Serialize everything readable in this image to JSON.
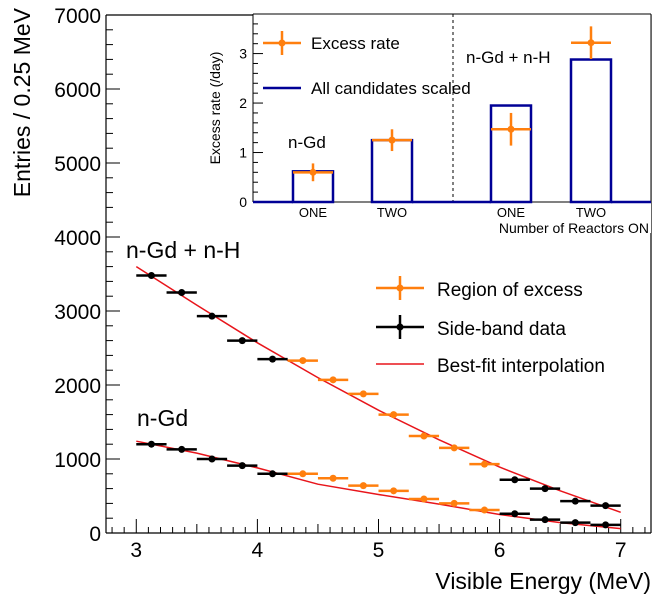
{
  "chart_data": [
    {
      "type": "scatter",
      "title": "",
      "xlabel": "Visible Energy (MeV)",
      "ylabel": "Entries / 0.25 MeV",
      "xlim": [
        2.75,
        7.25
      ],
      "ylim": [
        0,
        7000
      ],
      "x_ticks": [
        "3",
        "4",
        "5",
        "6",
        "7"
      ],
      "y_ticks": [
        "0",
        "1000",
        "2000",
        "3000",
        "4000",
        "5000",
        "6000",
        "7000"
      ],
      "grid": false,
      "legend": "right-middle",
      "legend_entries": [
        "Region of excess",
        "Side-band data",
        "Best-fit interpolation"
      ],
      "annotations": [
        "n-Gd + n-H",
        "n-Gd"
      ],
      "colors": {
        "excess": "#ff7f0e",
        "sideband": "#000000",
        "fit": "#e8151b"
      },
      "series": [
        {
          "name": "Region of excess",
          "x": [
            4.375,
            4.625,
            4.875,
            5.125,
            5.375,
            5.625,
            5.875
          ],
          "groups": [
            {
              "name": "n-Gd + n-H",
              "y": [
                2330,
                2070,
                1880,
                1600,
                1310,
                1150,
                930
              ]
            },
            {
              "name": "n-Gd",
              "y": [
                800,
                740,
                640,
                570,
                460,
                400,
                310
              ]
            }
          ]
        },
        {
          "name": "Side-band data",
          "groups": [
            {
              "name": "n-Gd + n-H",
              "x": [
                3.125,
                3.375,
                3.625,
                3.875,
                4.125,
                6.125,
                6.375,
                6.625,
                6.875
              ],
              "y": [
                3480,
                3250,
                2930,
                2600,
                2350,
                720,
                600,
                430,
                370
              ]
            },
            {
              "name": "n-Gd",
              "x": [
                3.125,
                3.375,
                3.625,
                3.875,
                4.125,
                6.125,
                6.375,
                6.625,
                6.875
              ],
              "y": [
                1200,
                1130,
                1000,
                910,
                800,
                260,
                180,
                140,
                110
              ]
            }
          ]
        },
        {
          "name": "Best-fit interpolation",
          "groups": [
            {
              "name": "n-Gd + n-H",
              "x": [
                3.0,
                3.5,
                4.0,
                4.5,
                5.0,
                5.5,
                6.0,
                6.5,
                7.0
              ],
              "y": [
                3600,
                3080,
                2570,
                2100,
                1660,
                1260,
                890,
                570,
                280
              ]
            },
            {
              "name": "n-Gd",
              "x": [
                3.0,
                3.5,
                4.0,
                4.5,
                5.0,
                5.5,
                6.0,
                6.5,
                7.0
              ],
              "y": [
                1240,
                1080,
                880,
                660,
                520,
                390,
                250,
                140,
                60
              ]
            }
          ]
        }
      ]
    },
    {
      "type": "bar",
      "title": "",
      "xlabel": "Number of Reactors ON",
      "ylabel": "Excess rate (/day)",
      "ylim": [
        0,
        3.8
      ],
      "y_ticks": [
        "0",
        "1",
        "2",
        "3"
      ],
      "categories": [
        "ONE",
        "TWO",
        "ONE",
        "TWO"
      ],
      "group_labels": [
        "n-Gd",
        "n-Gd + n-H"
      ],
      "legend": "top-left",
      "legend_entries": [
        "Excess rate",
        "All candidates scaled"
      ],
      "colors": {
        "excess": "#ff7f0e",
        "scaled": "#000096"
      },
      "series": [
        {
          "name": "All candidates scaled",
          "values": [
            0.62,
            1.25,
            1.95,
            2.88
          ]
        },
        {
          "name": "Excess rate",
          "values": [
            0.6,
            1.25,
            1.47,
            3.22
          ],
          "errors": [
            0.18,
            0.22,
            0.33,
            0.33
          ]
        }
      ]
    }
  ]
}
